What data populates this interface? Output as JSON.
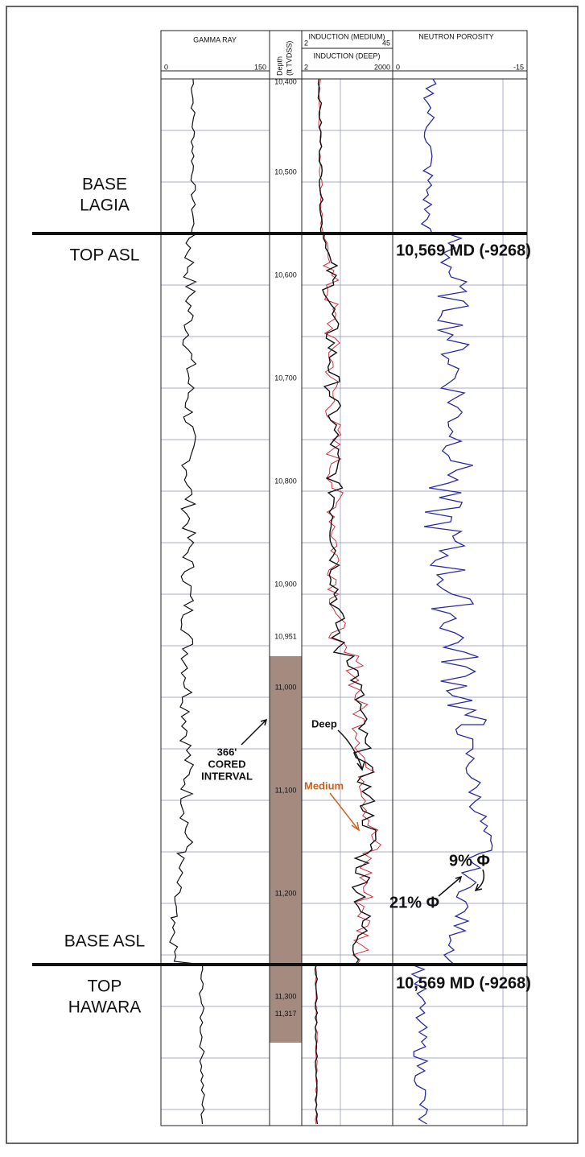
{
  "header": {
    "gamma": {
      "title": "GAMMA RAY",
      "min": "0",
      "max": "150"
    },
    "depth": {
      "title": "Depth",
      "unit": "(ft TVDSS)"
    },
    "induction": {
      "medium_title": "INDUCTION (MEDIUM)",
      "medium_min": "2",
      "medium_max": "45",
      "deep_title": "INDUCTION (DEEP)",
      "deep_min": "2",
      "deep_max": "2000"
    },
    "neutron": {
      "title": "NEUTRON POROSITY",
      "min": "0",
      "max": "-15"
    }
  },
  "depth_ticks": [
    {
      "value": 10400,
      "label": "10,400"
    },
    {
      "value": 10500,
      "label": "10,500"
    },
    {
      "value": 10600,
      "label": "10,600"
    },
    {
      "value": 10700,
      "label": "10,700"
    },
    {
      "value": 10800,
      "label": "10,800"
    },
    {
      "value": 10900,
      "label": "10,900"
    },
    {
      "value": 10951,
      "label": "10,951"
    },
    {
      "value": 11000,
      "label": "11,000"
    },
    {
      "value": 11100,
      "label": "11,100"
    },
    {
      "value": 11200,
      "label": "11,200"
    },
    {
      "value": 11300,
      "label": "11,300"
    },
    {
      "value": 11317,
      "label": "11,317"
    }
  ],
  "formations": {
    "base_lagia": [
      "BASE",
      "LAGIA"
    ],
    "top_asl": "TOP ASL",
    "base_asl": "BASE ASL",
    "top_hawara": [
      "TOP",
      "HAWARA"
    ]
  },
  "annotations": {
    "md_top": "10,569 MD (-9268)",
    "md_base": "10,569 MD (-9268)",
    "cored": [
      "366'",
      "CORED",
      "INTERVAL"
    ],
    "deep": "Deep",
    "medium": "Medium",
    "phi9": "9% Φ",
    "phi21": "21% Φ"
  }
}
